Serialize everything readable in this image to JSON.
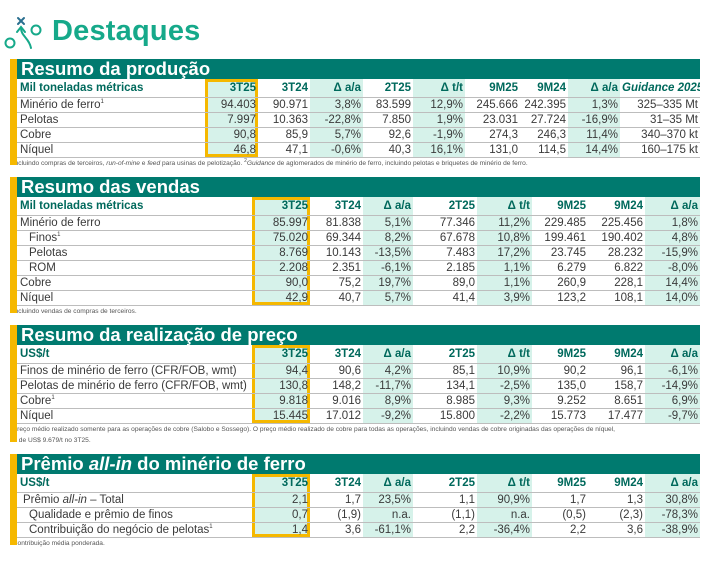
{
  "page": {
    "title": "Destaques",
    "icon": "strategy-play-icon"
  },
  "colors": {
    "teal": "#007a6f",
    "title_green": "#16a98a",
    "yellow": "#f5b800",
    "shade": "#d6f2ea"
  },
  "sections": [
    {
      "id": "producao",
      "title": [
        {
          "t": "Resumo da produção"
        }
      ],
      "columns": [
        {
          "t": "Mil toneladas métricas"
        },
        {
          "t": "3T25"
        },
        {
          "t": "3T24"
        },
        {
          "t": "Δ a/a"
        },
        {
          "t": "2T25"
        },
        {
          "t": "Δ t/t"
        },
        {
          "t": "9M25"
        },
        {
          "t": "9M24"
        },
        {
          "t": "Δ a/a"
        },
        {
          "t": "Guidance 2025",
          "i": true
        }
      ],
      "rows": [
        {
          "label": [
            {
              "t": "Minério de ferro"
            }
          ],
          "sup": "1",
          "values": [
            "94.403",
            "90.971",
            "3,8%",
            "83.599",
            "12,9%",
            "245.666",
            "242.395",
            "1,3%",
            "325–335 Mt"
          ]
        },
        {
          "label": [
            {
              "t": "Pelotas"
            }
          ],
          "values": [
            "7.997",
            "10.363",
            "-22,8%",
            "7.850",
            "1,9%",
            "23.031",
            "27.724",
            "-16,9%",
            "31–35 Mt"
          ]
        },
        {
          "label": [
            {
              "t": "Cobre"
            }
          ],
          "values": [
            "90,8",
            "85,9",
            "5,7%",
            "92,6",
            "-1,9%",
            "274,3",
            "246,3",
            "11,4%",
            "340–370 kt"
          ]
        },
        {
          "label": [
            {
              "t": "Níquel"
            }
          ],
          "values": [
            "46,8",
            "47,1",
            "-0,6%",
            "40,3",
            "16,1%",
            "131,0",
            "114,5",
            "14,4%",
            "160–175 kt"
          ]
        }
      ],
      "footnotes": [
        [
          {
            "t": "1",
            "s": true
          },
          {
            "t": "Incluindo compras de terceiros, "
          },
          {
            "t": "run-of-mine",
            "i": true
          },
          {
            "t": " e "
          },
          {
            "t": "feed",
            "i": true
          },
          {
            "t": " para usinas de pelotização. "
          },
          {
            "t": "2",
            "s": true
          },
          {
            "t": "Guidance",
            "i": true
          },
          {
            "t": " de aglomerados de minério de ferro, incluindo pelotas e briquetes de minério de ferro."
          }
        ]
      ]
    },
    {
      "id": "vendas",
      "title": [
        {
          "t": "Resumo das vendas"
        }
      ],
      "columns": [
        {
          "t": "Mil toneladas métricas"
        },
        {
          "t": "3T25"
        },
        {
          "t": "3T24"
        },
        {
          "t": "Δ a/a"
        },
        {
          "t": "2T25"
        },
        {
          "t": "Δ t/t"
        },
        {
          "t": "9M25"
        },
        {
          "t": "9M24"
        },
        {
          "t": "Δ a/a"
        }
      ],
      "rows": [
        {
          "label": [
            {
              "t": "Minério de ferro"
            }
          ],
          "values": [
            "85.997",
            "81.838",
            "5,1%",
            "77.346",
            "11,2%",
            "229.485",
            "225.456",
            "1,8%"
          ]
        },
        {
          "label": [
            {
              "t": "Finos"
            }
          ],
          "sup": "1",
          "indent": true,
          "values": [
            "75.020",
            "69.344",
            "8,2%",
            "67.678",
            "10,8%",
            "199.461",
            "190.402",
            "4,8%"
          ]
        },
        {
          "label": [
            {
              "t": "Pelotas"
            }
          ],
          "indent": true,
          "values": [
            "8.769",
            "10.143",
            "-13,5%",
            "7.483",
            "17,2%",
            "23.745",
            "28.232",
            "-15,9%"
          ]
        },
        {
          "label": [
            {
              "t": "ROM"
            }
          ],
          "indent": true,
          "values": [
            "2.208",
            "2.351",
            "-6,1%",
            "2.185",
            "1,1%",
            "6.279",
            "6.822",
            "-8,0%"
          ]
        },
        {
          "label": [
            {
              "t": "Cobre"
            }
          ],
          "values": [
            "90,0",
            "75,2",
            "19,7%",
            "89,0",
            "1,1%",
            "260,9",
            "228,1",
            "14,4%"
          ]
        },
        {
          "label": [
            {
              "t": "Níquel"
            }
          ],
          "values": [
            "42,9",
            "40,7",
            "5,7%",
            "41,4",
            "3,9%",
            "123,2",
            "108,1",
            "14,0%"
          ]
        }
      ],
      "footnotes": [
        [
          {
            "t": "1",
            "s": true
          },
          {
            "t": "Incluindo vendas de compras de terceiros."
          }
        ]
      ]
    },
    {
      "id": "preco",
      "title": [
        {
          "t": "Resumo da realização de preço"
        }
      ],
      "columns": [
        {
          "t": "US$/t"
        },
        {
          "t": "3T25"
        },
        {
          "t": "3T24"
        },
        {
          "t": "Δ a/a"
        },
        {
          "t": "2T25"
        },
        {
          "t": "Δ t/t"
        },
        {
          "t": "9M25"
        },
        {
          "t": "9M24"
        },
        {
          "t": "Δ a/a"
        }
      ],
      "rows": [
        {
          "label": [
            {
              "t": "Finos de minério de ferro (CFR/FOB, wmt)"
            }
          ],
          "values": [
            "94,4",
            "90,6",
            "4,2%",
            "85,1",
            "10,9%",
            "90,2",
            "96,1",
            "-6,1%"
          ]
        },
        {
          "label": [
            {
              "t": "Pelotas de minério de ferro (CFR/FOB, wmt)"
            }
          ],
          "values": [
            "130,8",
            "148,2",
            "-11,7%",
            "134,1",
            "-2,5%",
            "135,0",
            "158,7",
            "-14,9%"
          ]
        },
        {
          "label": [
            {
              "t": "Cobre"
            }
          ],
          "sup": "1",
          "values": [
            "9.818",
            "9.016",
            "8,9%",
            "8.985",
            "9,3%",
            "9.252",
            "8.651",
            "6,9%"
          ]
        },
        {
          "label": [
            {
              "t": "Níquel"
            }
          ],
          "values": [
            "15.445",
            "17.012",
            "-9,2%",
            "15.800",
            "-2,2%",
            "15.773",
            "17.477",
            "-9,7%"
          ]
        }
      ],
      "footnotes": [
        [
          {
            "t": "1",
            "s": true
          },
          {
            "t": "Preço médio realizado somente para as operações de cobre (Salobo e Sossego). O preço médio realizado de cobre para todas as operações, incluindo vendas de cobre originadas das operações de níquel,"
          }
        ],
        [
          {
            "t": "foi de US$ 9.679/t no 3T25."
          }
        ]
      ]
    },
    {
      "id": "premio",
      "title": [
        {
          "t": "Prêmio "
        },
        {
          "t": "all-in",
          "i": true
        },
        {
          "t": " do minério de ferro"
        }
      ],
      "columns": [
        {
          "t": "US$/t"
        },
        {
          "t": "3T25"
        },
        {
          "t": "3T24"
        },
        {
          "t": "Δ a/a"
        },
        {
          "t": "2T25"
        },
        {
          "t": "Δ t/t"
        },
        {
          "t": "9M25"
        },
        {
          "t": "9M24"
        },
        {
          "t": "Δ a/a"
        }
      ],
      "rows": [
        {
          "label": [
            {
              "t": "Prêmio "
            },
            {
              "t": "all-in",
              "i": true
            },
            {
              "t": " – Total"
            }
          ],
          "indent1": true,
          "values": [
            "2,1",
            "1,7",
            "23,5%",
            "1,1",
            "90,9%",
            "1,7",
            "1,3",
            "30,8%"
          ]
        },
        {
          "label": [
            {
              "t": "Qualidade e prêmio de finos"
            }
          ],
          "indent": true,
          "values": [
            "0,7",
            "(1,9)",
            "n.a.",
            "(1,1)",
            "n.a.",
            "(0,5)",
            "(2,3)",
            "-78,3%"
          ]
        },
        {
          "label": [
            {
              "t": "Contribuição do negócio de pelotas"
            }
          ],
          "sup": "1",
          "indent": true,
          "values": [
            "1,4",
            "3,6",
            "-61,1%",
            "2,2",
            "-36,4%",
            "2,2",
            "3,6",
            "-38,9%"
          ]
        }
      ],
      "footnotes": [
        [
          {
            "t": "1",
            "s": true
          },
          {
            "t": "Contribuição média ponderada."
          }
        ]
      ]
    }
  ]
}
